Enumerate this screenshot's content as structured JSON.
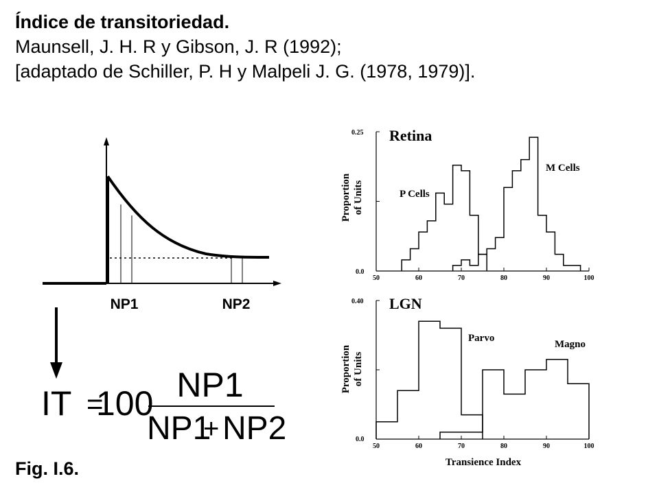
{
  "header": {
    "title": "Índice de transitoriedad.",
    "citation": "Maunsell, J. H. R y Gibson, J. R (1992);",
    "adapted": "[adaptado de Schiller, P. H y Malpeli  J. G. (1978, 1979)]."
  },
  "schematic": {
    "np1_label": "NP1",
    "np2_label": "NP2"
  },
  "formula": {
    "lhs": "IT",
    "eq": "=",
    "coef": "100",
    "numerator": "NP1",
    "den_a": "NP1",
    "den_plus": "+",
    "den_b": "NP2"
  },
  "caption": "Fig. I.6.",
  "chart_data": [
    {
      "type": "histogram",
      "title": "Retina",
      "ylabel": "Proportion of Units",
      "ylabel_lines": [
        "Proportion",
        "of Units"
      ],
      "ylim": [
        0.0,
        0.25
      ],
      "ytick_labels": [
        "0.25",
        "0.0"
      ],
      "xlim": [
        50,
        100
      ],
      "xticks": [
        "50",
        "60",
        "70",
        "80",
        "90",
        "100"
      ],
      "bin_width": 2,
      "series": [
        {
          "name": "P Cells",
          "x": [
            56,
            58,
            60,
            62,
            64,
            66,
            68,
            70,
            72,
            74
          ],
          "values": [
            0.02,
            0.04,
            0.07,
            0.09,
            0.14,
            0.12,
            0.19,
            0.18,
            0.1,
            0.03
          ]
        },
        {
          "name": "M Cells",
          "x": [
            68,
            70,
            72,
            74,
            76,
            78,
            80,
            82,
            84,
            86,
            88,
            90,
            92,
            94,
            96
          ],
          "values": [
            0.01,
            0.02,
            0.01,
            0.03,
            0.04,
            0.06,
            0.15,
            0.18,
            0.2,
            0.24,
            0.1,
            0.07,
            0.03,
            0.01,
            0.01
          ]
        }
      ]
    },
    {
      "type": "histogram",
      "title": "LGN",
      "ylabel": "Proportion of Units",
      "ylabel_lines": [
        "Proportion",
        "of Units"
      ],
      "xlabel": "Transience Index",
      "ylim": [
        0.0,
        0.4
      ],
      "ytick_labels": [
        "0.40",
        "0.0"
      ],
      "xlim": [
        50,
        100
      ],
      "xticks": [
        "50",
        "60",
        "70",
        "80",
        "90",
        "100"
      ],
      "bin_width": 5,
      "series": [
        {
          "name": "Parvo",
          "x": [
            50,
            55,
            60,
            65,
            70
          ],
          "values": [
            0.05,
            0.14,
            0.34,
            0.32,
            0.07
          ]
        },
        {
          "name": "Magno",
          "x": [
            65,
            70,
            75,
            80,
            85,
            90,
            95
          ],
          "values": [
            0.02,
            0.02,
            0.2,
            0.13,
            0.2,
            0.23,
            0.16
          ]
        }
      ]
    }
  ]
}
